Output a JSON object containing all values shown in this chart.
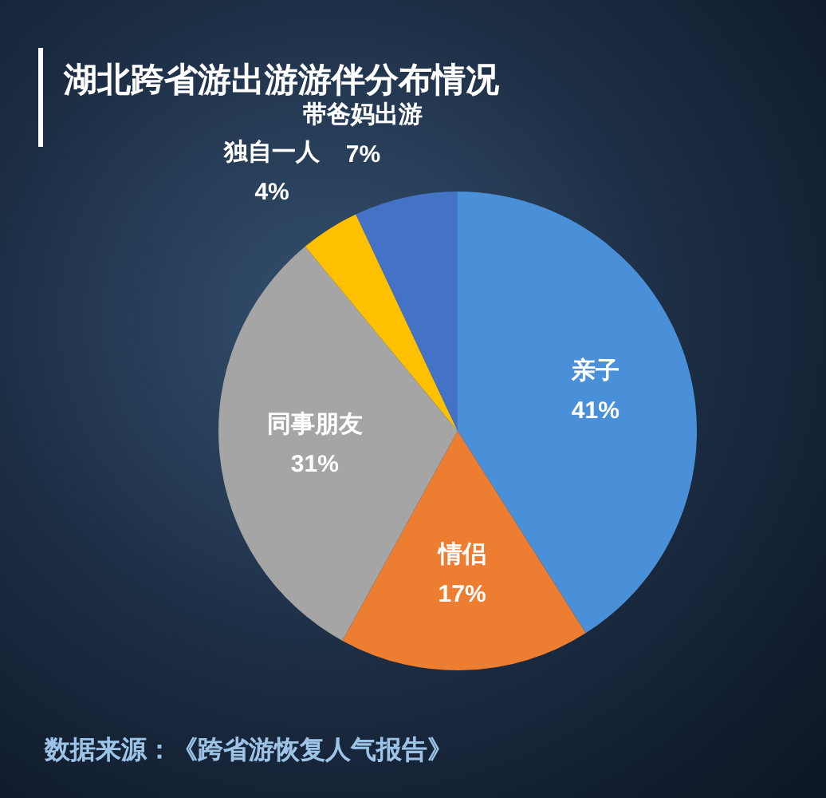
{
  "chart_data": {
    "type": "pie",
    "title": "湖北跨省游出游游伴分布情况",
    "categories": [
      "亲子",
      "情侣",
      "同事朋友",
      "独自一人",
      "带爸妈出游"
    ],
    "values": [
      41,
      17,
      31,
      4,
      7
    ],
    "value_labels": [
      "41%",
      "17%",
      "31%",
      "4%",
      "7%"
    ],
    "colors": [
      "#4a90d9",
      "#ed7d31",
      "#a5a5a5",
      "#ffc000",
      "#4472c4"
    ],
    "annotations": [
      "数据来源：《跨省游恢复人气报告》"
    ],
    "legend": false
  }
}
